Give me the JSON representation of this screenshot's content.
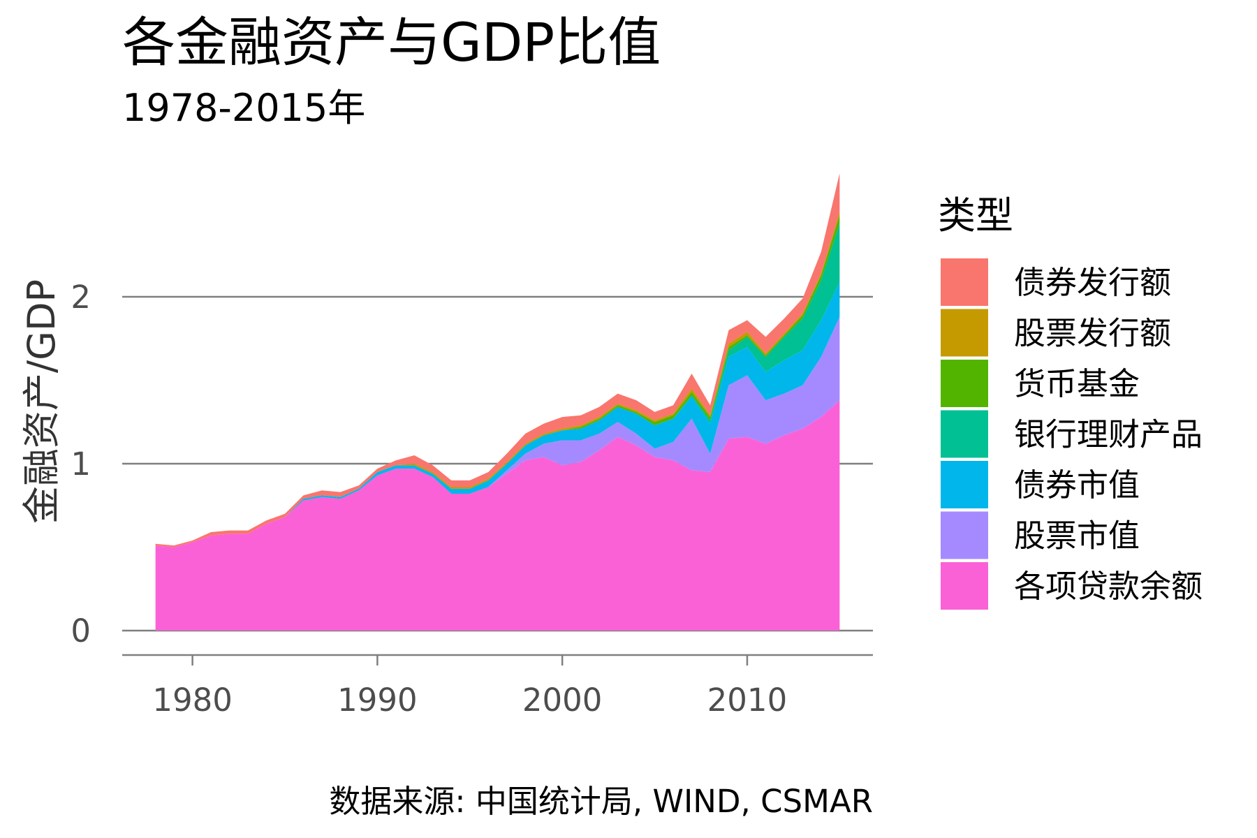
{
  "chart_data": {
    "type": "area",
    "stacked": true,
    "title": "各金融资产与GDP比值",
    "subtitle": "1978-2015年",
    "ylabel": "金融资产/GDP",
    "xlabel": "",
    "caption": "数据来源: 中国统计局, WIND, CSMAR",
    "legend_title": "类型",
    "legend_position": "right",
    "grid": "horizontal major",
    "xlim": [
      1976.2,
      2016.8
    ],
    "ylim": [
      0,
      2.75
    ],
    "x_ticks": [
      1980,
      1990,
      2000,
      2010
    ],
    "y_ticks": [
      0,
      1,
      2
    ],
    "x": [
      1978,
      1979,
      1980,
      1981,
      1982,
      1983,
      1984,
      1985,
      1986,
      1987,
      1988,
      1989,
      1990,
      1991,
      1992,
      1993,
      1994,
      1995,
      1996,
      1997,
      1998,
      1999,
      2000,
      2001,
      2002,
      2003,
      2004,
      2005,
      2006,
      2007,
      2008,
      2009,
      2010,
      2011,
      2012,
      2013,
      2014,
      2015
    ],
    "series": [
      {
        "name": "各项贷款余额",
        "color": "#FB61D7",
        "values": [
          0.51,
          0.5,
          0.53,
          0.57,
          0.58,
          0.58,
          0.64,
          0.68,
          0.78,
          0.8,
          0.79,
          0.84,
          0.93,
          0.97,
          0.97,
          0.92,
          0.82,
          0.82,
          0.86,
          0.94,
          1.02,
          1.04,
          0.99,
          1.01,
          1.08,
          1.16,
          1.11,
          1.04,
          1.02,
          0.96,
          0.95,
          1.15,
          1.16,
          1.12,
          1.17,
          1.21,
          1.28,
          1.38
        ]
      },
      {
        "name": "股票市值",
        "color": "#A58AFF",
        "values": [
          0,
          0,
          0,
          0,
          0,
          0,
          0,
          0,
          0,
          0,
          0,
          0,
          0,
          0,
          0,
          0,
          0,
          0,
          0,
          0.02,
          0.04,
          0.08,
          0.15,
          0.13,
          0.1,
          0.09,
          0.07,
          0.05,
          0.11,
          0.31,
          0.11,
          0.32,
          0.37,
          0.26,
          0.25,
          0.26,
          0.36,
          0.5
        ]
      },
      {
        "name": "债券市值",
        "color": "#00B6EB",
        "values": [
          0,
          0,
          0,
          0,
          0,
          0,
          0,
          0,
          0.01,
          0.01,
          0.01,
          0.01,
          0.02,
          0.02,
          0.02,
          0.02,
          0.03,
          0.03,
          0.04,
          0.04,
          0.05,
          0.05,
          0.06,
          0.07,
          0.08,
          0.09,
          0.12,
          0.14,
          0.14,
          0.13,
          0.18,
          0.17,
          0.17,
          0.17,
          0.2,
          0.21,
          0.22,
          0.21
        ]
      },
      {
        "name": "银行理财产品",
        "color": "#00C094",
        "values": [
          0,
          0,
          0,
          0,
          0,
          0,
          0,
          0,
          0,
          0,
          0,
          0,
          0,
          0,
          0,
          0,
          0,
          0,
          0,
          0,
          0,
          0,
          0,
          0,
          0,
          0,
          0,
          0,
          0,
          0.01,
          0.02,
          0.04,
          0.06,
          0.09,
          0.14,
          0.19,
          0.24,
          0.35
        ]
      },
      {
        "name": "货币基金",
        "color": "#53B400",
        "values": [
          0,
          0,
          0,
          0,
          0,
          0,
          0,
          0,
          0,
          0,
          0,
          0,
          0,
          0,
          0,
          0,
          0,
          0,
          0,
          0,
          0,
          0,
          0,
          0.01,
          0.01,
          0.01,
          0.01,
          0.02,
          0.02,
          0.02,
          0.02,
          0.02,
          0.01,
          0.01,
          0.01,
          0.02,
          0.03,
          0.05
        ]
      },
      {
        "name": "股票发行额",
        "color": "#C49A00",
        "values": [
          0,
          0,
          0,
          0,
          0,
          0,
          0,
          0,
          0,
          0,
          0,
          0,
          0,
          0,
          0.01,
          0.01,
          0.01,
          0.01,
          0.01,
          0.01,
          0.01,
          0.01,
          0.01,
          0.01,
          0.01,
          0.01,
          0.01,
          0.01,
          0.01,
          0.02,
          0.01,
          0.02,
          0.02,
          0.01,
          0.01,
          0.01,
          0.01,
          0.02
        ]
      },
      {
        "name": "债券发行额",
        "color": "#F8766D",
        "values": [
          0.01,
          0.01,
          0.01,
          0.02,
          0.02,
          0.02,
          0.02,
          0.02,
          0.02,
          0.03,
          0.03,
          0.02,
          0.02,
          0.03,
          0.05,
          0.04,
          0.04,
          0.04,
          0.04,
          0.05,
          0.06,
          0.06,
          0.07,
          0.06,
          0.06,
          0.06,
          0.06,
          0.05,
          0.05,
          0.09,
          0.06,
          0.08,
          0.07,
          0.1,
          0.09,
          0.09,
          0.13,
          0.23
        ]
      }
    ],
    "legend_order": [
      "债券发行额",
      "股票发行额",
      "货币基金",
      "银行理财产品",
      "债券市值",
      "股票市值",
      "各项贷款余额"
    ]
  }
}
